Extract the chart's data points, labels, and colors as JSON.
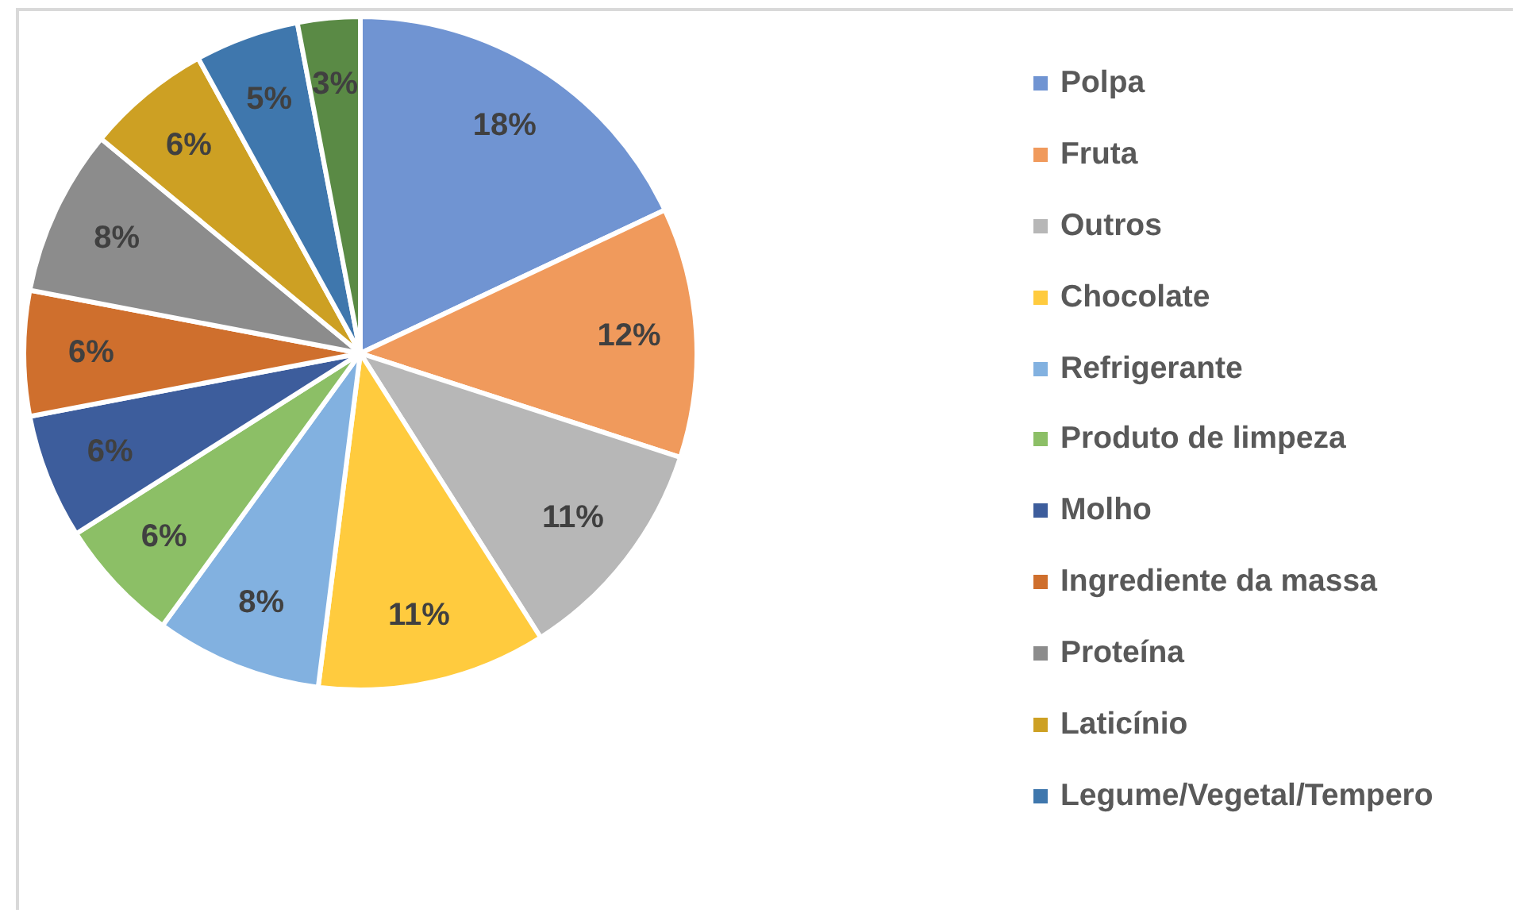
{
  "chart_data": {
    "type": "pie",
    "categories": [
      "Polpa",
      "Fruta",
      "Outros",
      "Chocolate",
      "Refrigerante",
      "Produto de limpeza",
      "Molho",
      "Ingrediente da massa",
      "Proteína",
      "Laticínio",
      "Legume/Vegetal/Tempero",
      null
    ],
    "values": [
      18,
      12,
      11,
      11,
      8,
      6,
      6,
      6,
      8,
      6,
      5,
      3
    ],
    "colors": [
      "#7094d2",
      "#f09a5c",
      "#b7b7b7",
      "#ffcb3e",
      "#82b1e0",
      "#8cbf66",
      "#3d5d9c",
      "#cf6f2d",
      "#8c8c8c",
      "#cda023",
      "#3f77ad",
      "#5a8a45"
    ],
    "value_labels": [
      "18%",
      "12%",
      "11%",
      "11%",
      "8%",
      "6%",
      "6%",
      "6%",
      "8%",
      "6%",
      "5%",
      "3%"
    ],
    "legend": "right"
  }
}
